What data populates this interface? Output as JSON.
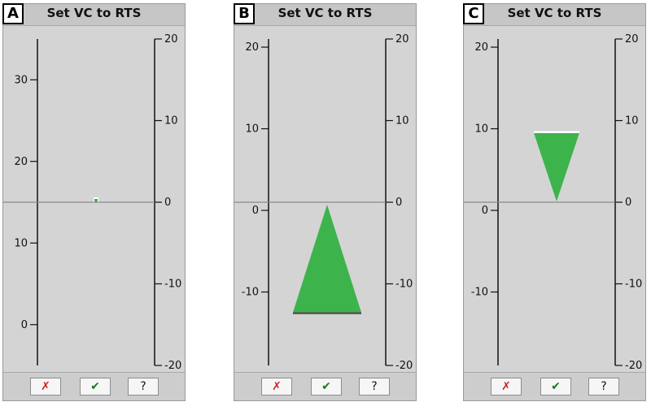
{
  "colors": {
    "indicator": "#3cb44b",
    "panel": "#d4d4d4",
    "axis": "#111111",
    "zero_line": "#8a8a8a"
  },
  "buttons": {
    "cancel": "✗",
    "confirm": "✔",
    "help": "?"
  },
  "panels": [
    {
      "letter": "A",
      "title": "Set VC to RTS",
      "left_axis": {
        "min": -5,
        "max": 35,
        "ticks": [
          0,
          10,
          20,
          30
        ]
      },
      "right_axis": {
        "min": -20,
        "max": 20,
        "ticks": [
          -20,
          -10,
          0,
          10,
          20
        ]
      },
      "indicator": {
        "type": "dot",
        "value": 0
      }
    },
    {
      "letter": "B",
      "title": "Set VC to RTS",
      "left_axis": {
        "min": -19,
        "max": 21,
        "ticks": [
          -10,
          0,
          10,
          20
        ]
      },
      "right_axis": {
        "min": -20,
        "max": 20,
        "ticks": [
          -20,
          -10,
          0,
          10,
          20
        ]
      },
      "indicator": {
        "type": "up-triangle",
        "value": -13.5
      }
    },
    {
      "letter": "C",
      "title": "Set VC to RTS",
      "left_axis": {
        "min": -19,
        "max": 21,
        "ticks": [
          -10,
          0,
          10,
          20
        ]
      },
      "right_axis": {
        "min": -20,
        "max": 20,
        "ticks": [
          -20,
          -10,
          0,
          10,
          20
        ]
      },
      "indicator": {
        "type": "down-triangle",
        "value": 8.5
      }
    }
  ]
}
